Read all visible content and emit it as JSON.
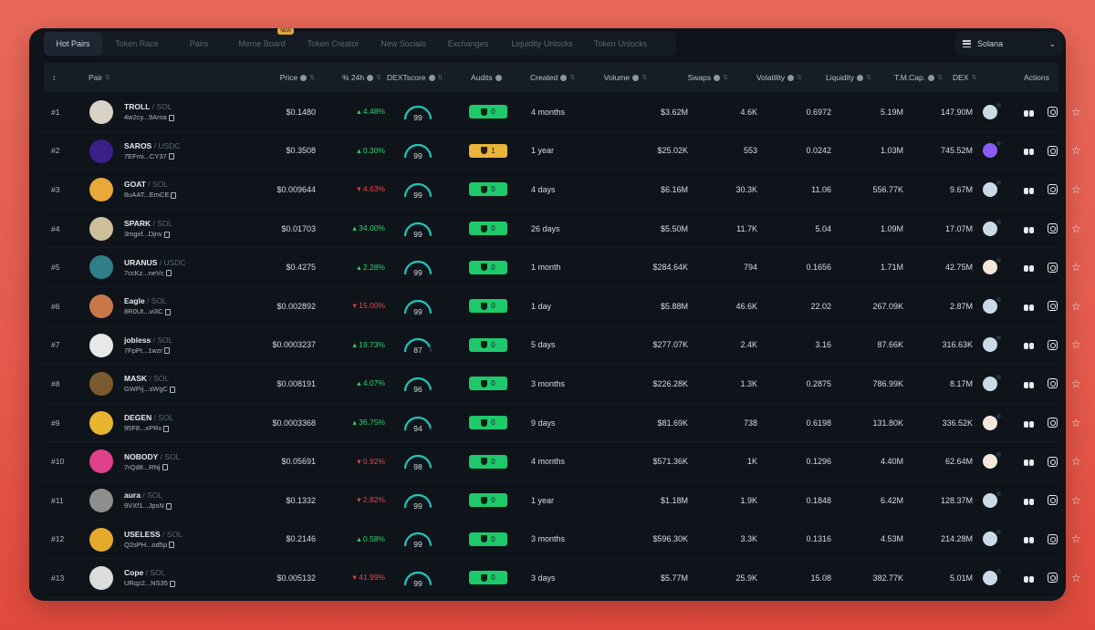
{
  "tabs": [
    {
      "label": "Hot Pairs",
      "active": true
    },
    {
      "label": "Token Race"
    },
    {
      "label": "Pairs"
    },
    {
      "label": "Meme Board",
      "badge": "NEW"
    },
    {
      "label": "Token Creator"
    },
    {
      "label": "New Socials"
    },
    {
      "label": "Exchanges"
    },
    {
      "label": "Liquidity Unlocks"
    },
    {
      "label": "Token Unlocks"
    }
  ],
  "chain": {
    "label": "Solana",
    "icon": "menu-lines-icon"
  },
  "headers": {
    "rank": "↕",
    "pair": "Pair",
    "price": "Price",
    "change": "% 24h",
    "dextscore": "DEXTscore",
    "audits": "Audits",
    "created": "Created",
    "volume": "Volume",
    "swaps": "Swaps",
    "volatility": "Volatility",
    "liquidity": "Liquidity",
    "mcap": "T.M.Cap.",
    "dex": "DEX",
    "actions": "Actions"
  },
  "colors": {
    "up": "#2fd36b",
    "down": "#e2474b",
    "audit_ok": "#1ec96b",
    "audit_warn": "#e9b43a",
    "score_arc": "#20c4b8"
  },
  "rows": [
    {
      "rank": "#1",
      "symbol": "TROLL",
      "quote": "SOL",
      "addr": "4w2cy...9Ama",
      "price": "$0.1480",
      "change": "+4.48%",
      "dir": "up",
      "score": "99",
      "audit": "0",
      "audit_type": "ok",
      "created": "4 months",
      "volume": "$3.62M",
      "swaps": "4.6K",
      "volatility": "0.6972",
      "liquidity": "5.19M",
      "mcap": "147.90M",
      "dex": "blue",
      "avatar": "#d9d2c7"
    },
    {
      "rank": "#2",
      "symbol": "SAROS",
      "quote": "USDC",
      "addr": "7EFmi...CY37",
      "price": "$0.3508",
      "change": "+0.30%",
      "dir": "up",
      "score": "99",
      "audit": "1",
      "audit_type": "warn",
      "created": "1 year",
      "volume": "$25.02K",
      "swaps": "553",
      "volatility": "0.0242",
      "liquidity": "1.03M",
      "mcap": "745.52M",
      "dex": "purple",
      "avatar": "#3b1f86"
    },
    {
      "rank": "#3",
      "symbol": "GOAT",
      "quote": "SOL",
      "addr": "8uAAT...EmCE",
      "price": "$0.009644",
      "change": "-4.63%",
      "dir": "down",
      "score": "99",
      "audit": "0",
      "audit_type": "ok",
      "created": "4 days",
      "volume": "$6.16M",
      "swaps": "30.3K",
      "volatility": "11.06",
      "liquidity": "556.77K",
      "mcap": "9.67M",
      "dex": "blue",
      "avatar": "#e8a93a"
    },
    {
      "rank": "#4",
      "symbol": "SPARK",
      "quote": "SOL",
      "addr": "3mgxf...Djnv",
      "price": "$0.01703",
      "change": "+34.00%",
      "dir": "up",
      "score": "99",
      "audit": "0",
      "audit_type": "ok",
      "created": "26 days",
      "volume": "$5.50M",
      "swaps": "11.7K",
      "volatility": "5.04",
      "liquidity": "1.09M",
      "mcap": "17.07M",
      "dex": "blue",
      "avatar": "#cdbf9b"
    },
    {
      "rank": "#5",
      "symbol": "URANUS",
      "quote": "USDC",
      "addr": "7ccKz...neVc",
      "price": "$0.4275",
      "change": "+2.28%",
      "dir": "up",
      "score": "99",
      "audit": "0",
      "audit_type": "ok",
      "created": "1 month",
      "volume": "$284.64K",
      "swaps": "794",
      "volatility": "0.1656",
      "liquidity": "1.71M",
      "mcap": "42.75M",
      "dex": "cream",
      "avatar": "#2f7f88"
    },
    {
      "rank": "#6",
      "symbol": "Eagle",
      "quote": "SOL",
      "addr": "8R0Ut...vi3C",
      "price": "$0.002892",
      "change": "-15.00%",
      "dir": "down",
      "score": "99",
      "audit": "0",
      "audit_type": "ok",
      "created": "1 day",
      "volume": "$5.88M",
      "swaps": "46.6K",
      "volatility": "22.02",
      "liquidity": "267.09K",
      "mcap": "2.87M",
      "dex": "blue",
      "avatar": "#c9774a"
    },
    {
      "rank": "#7",
      "symbol": "jobless",
      "quote": "SOL",
      "addr": "7FpPt...1wzr",
      "price": "$0.0003237",
      "change": "+19.73%",
      "dir": "up",
      "score": "87",
      "audit": "0",
      "audit_type": "ok",
      "created": "5 days",
      "volume": "$277.07K",
      "swaps": "2.4K",
      "volatility": "3.16",
      "liquidity": "87.66K",
      "mcap": "316.63K",
      "dex": "blue",
      "avatar": "#e8e8e8"
    },
    {
      "rank": "#8",
      "symbol": "MASK",
      "quote": "SOL",
      "addr": "GWPij...sWgC",
      "price": "$0.008191",
      "change": "+4.07%",
      "dir": "up",
      "score": "96",
      "audit": "0",
      "audit_type": "ok",
      "created": "3 months",
      "volume": "$226.28K",
      "swaps": "1.3K",
      "volatility": "0.2875",
      "liquidity": "786.99K",
      "mcap": "8.17M",
      "dex": "blue",
      "avatar": "#7a5a2e"
    },
    {
      "rank": "#9",
      "symbol": "DEGEN",
      "quote": "SOL",
      "addr": "95F8...xPRx",
      "price": "$0.0003368",
      "change": "+36.75%",
      "dir": "up",
      "score": "94",
      "audit": "0",
      "audit_type": "ok",
      "created": "9 days",
      "volume": "$81.69K",
      "swaps": "738",
      "volatility": "0.6198",
      "liquidity": "131.80K",
      "mcap": "336.52K",
      "dex": "cream",
      "avatar": "#e8b52f"
    },
    {
      "rank": "#10",
      "symbol": "NOBODY",
      "quote": "SOL",
      "addr": "7rQd8...RNj",
      "price": "$0.05691",
      "change": "-0.92%",
      "dir": "down",
      "score": "98",
      "audit": "0",
      "audit_type": "ok",
      "created": "4 months",
      "volume": "$571.36K",
      "swaps": "1K",
      "volatility": "0.1296",
      "liquidity": "4.40M",
      "mcap": "62.64M",
      "dex": "cream",
      "avatar": "#e0408a"
    },
    {
      "rank": "#11",
      "symbol": "aura",
      "quote": "SOL",
      "addr": "9VXf1...JpsN",
      "price": "$0.1332",
      "change": "-2.82%",
      "dir": "down",
      "score": "99",
      "audit": "0",
      "audit_type": "ok",
      "created": "1 year",
      "volume": "$1.18M",
      "swaps": "1.9K",
      "volatility": "0.1848",
      "liquidity": "6.42M",
      "mcap": "128.37M",
      "dex": "blue",
      "avatar": "#8e8e8e"
    },
    {
      "rank": "#12",
      "symbol": "USELESS",
      "quote": "SOL",
      "addr": "Q2sPH...od5p",
      "price": "$0.2146",
      "change": "+0.58%",
      "dir": "up",
      "score": "99",
      "audit": "0",
      "audit_type": "ok",
      "created": "3 months",
      "volume": "$596.30K",
      "swaps": "3.3K",
      "volatility": "0.1316",
      "liquidity": "4.53M",
      "mcap": "214.28M",
      "dex": "blue",
      "avatar": "#e5a92c"
    },
    {
      "rank": "#13",
      "symbol": "Cope",
      "quote": "SOL",
      "addr": "URqz2...NS35",
      "price": "$0.005132",
      "change": "-41.99%",
      "dir": "down",
      "score": "99",
      "audit": "0",
      "audit_type": "ok",
      "created": "3 days",
      "volume": "$5.77M",
      "swaps": "25.9K",
      "volatility": "15.08",
      "liquidity": "382.77K",
      "mcap": "5.01M",
      "dex": "blue",
      "avatar": "#dcdcdc"
    }
  ]
}
